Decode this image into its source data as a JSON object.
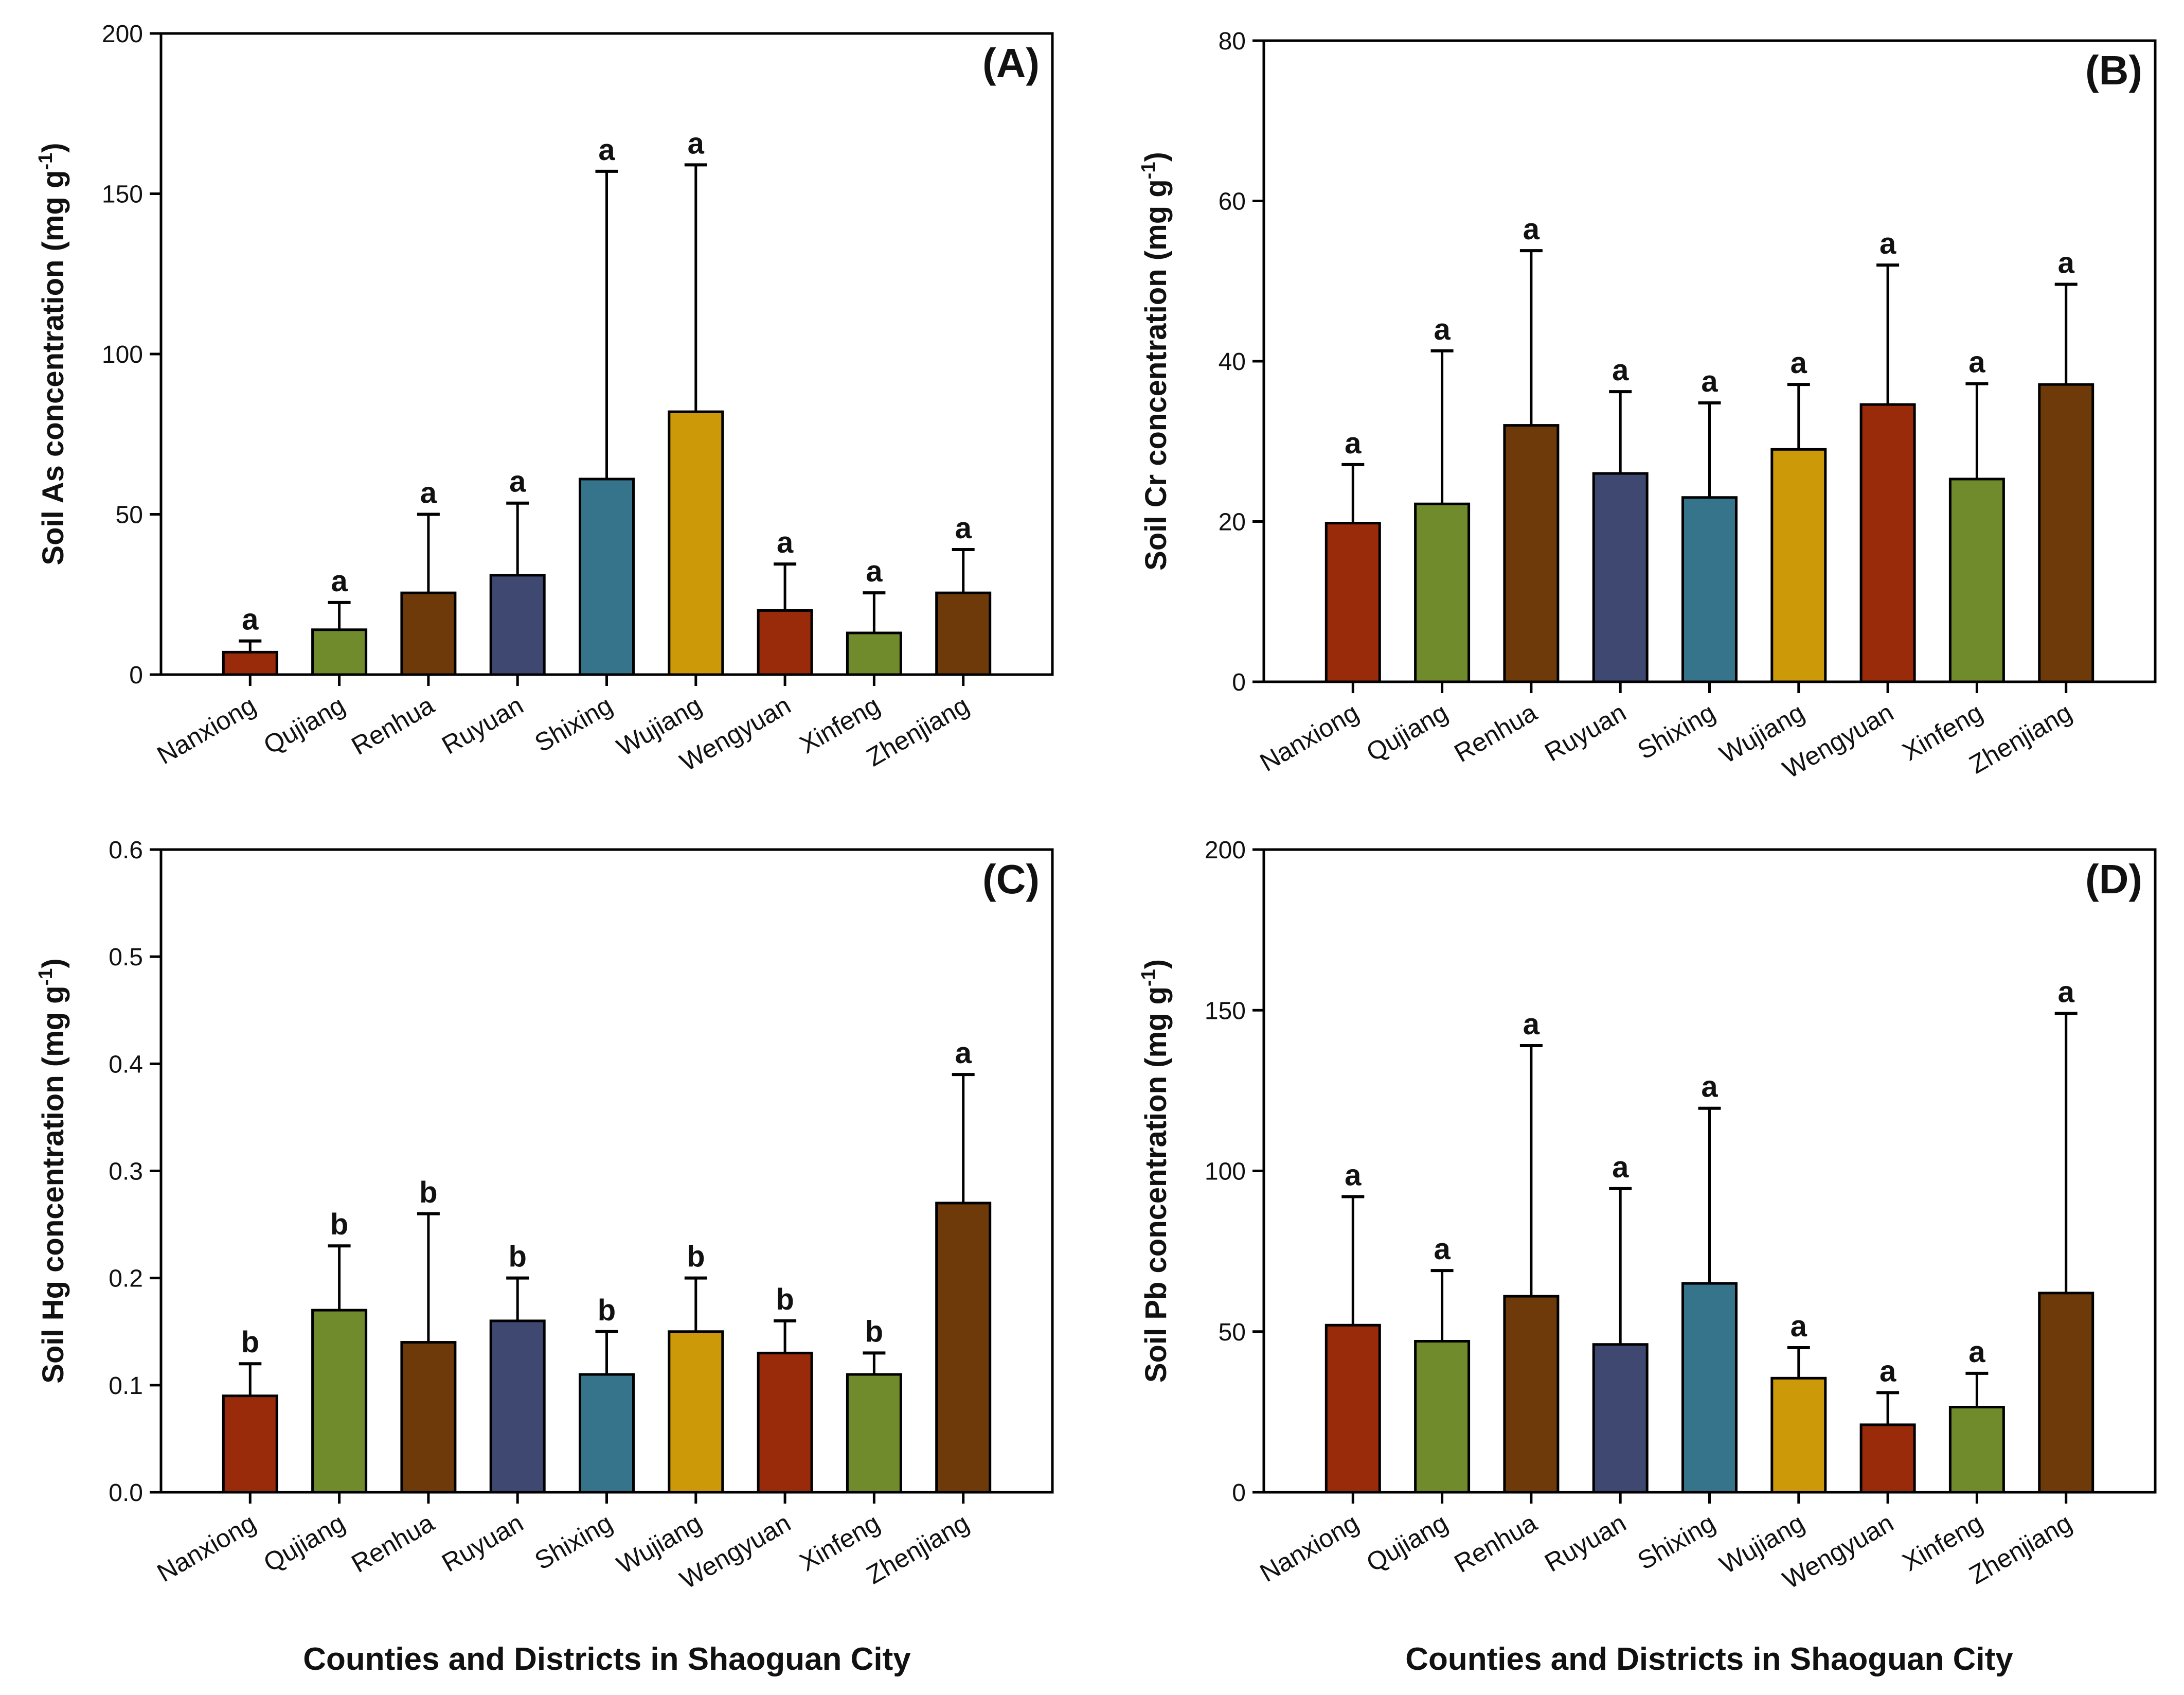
{
  "colors": [
    "#992A0A",
    "#6F8B2C",
    "#6E3A0A",
    "#3E4870",
    "#35748A",
    "#CC9908",
    "#992A0A",
    "#6F8B2C",
    "#6E3A0A"
  ],
  "x_axis_title": "Counties and Districts in Shaoguan City",
  "chart_data": [
    {
      "type": "bar",
      "panel": "(A)",
      "title": "(A)",
      "ylabel": "Soil As concentration (mg g",
      "ylabel_sup": "-1",
      "ylabel_end": ")",
      "categories": [
        "Nanxiong",
        "Qujiang",
        "Renhua",
        "Ruyuan",
        "Shixing",
        "Wujiang",
        "Wengyuan",
        "Xinfeng",
        "Zhenjiang"
      ],
      "values": [
        7,
        14,
        25.5,
        31,
        61,
        82,
        20,
        13,
        25.5
      ],
      "error_upper": [
        10.5,
        22.5,
        50,
        53.5,
        157,
        159,
        34.5,
        25.5,
        39
      ],
      "letters": [
        "a",
        "a",
        "a",
        "a",
        "a",
        "a",
        "a",
        "a",
        "a"
      ],
      "ylim": [
        0,
        200
      ],
      "yticks": [
        0,
        50,
        100,
        150,
        200
      ],
      "ytick_labels": [
        "0",
        "50",
        "100",
        "150",
        "200"
      ]
    },
    {
      "type": "bar",
      "panel": "(B)",
      "title": "(B)",
      "ylabel": "Soil Cr concentration (mg g",
      "ylabel_sup": "-1",
      "ylabel_end": ")",
      "categories": [
        "Nanxiong",
        "Qujiang",
        "Renhua",
        "Ruyuan",
        "Shixing",
        "Wujiang",
        "Wengyuan",
        "Xinfeng",
        "Zhenjiang"
      ],
      "values": [
        19.8,
        22.2,
        32,
        26,
        23,
        29,
        34.6,
        25.3,
        37.1
      ],
      "error_upper": [
        27.1,
        41.3,
        53.8,
        36.2,
        34.8,
        37.1,
        52,
        37.2,
        49.6
      ],
      "letters": [
        "a",
        "a",
        "a",
        "a",
        "a",
        "a",
        "a",
        "a",
        "a"
      ],
      "ylim": [
        0,
        80
      ],
      "yticks": [
        0,
        20,
        40,
        60,
        80
      ],
      "ytick_labels": [
        "0",
        "20",
        "40",
        "60",
        "80"
      ]
    },
    {
      "type": "bar",
      "panel": "(C)",
      "title": "(C)",
      "ylabel": "Soil Hg concentration (mg g",
      "ylabel_sup": "-1",
      "ylabel_end": ")",
      "categories": [
        "Nanxiong",
        "Qujiang",
        "Renhua",
        "Ruyuan",
        "Shixing",
        "Wujiang",
        "Wengyuan",
        "Xinfeng",
        "Zhenjiang"
      ],
      "values": [
        0.09,
        0.17,
        0.14,
        0.16,
        0.11,
        0.15,
        0.13,
        0.11,
        0.27
      ],
      "error_upper": [
        0.12,
        0.23,
        0.26,
        0.2,
        0.15,
        0.2,
        0.16,
        0.13,
        0.39
      ],
      "letters": [
        "b",
        "b",
        "b",
        "b",
        "b",
        "b",
        "b",
        "b",
        "a"
      ],
      "ylim": [
        0,
        0.6
      ],
      "yticks": [
        0,
        0.1,
        0.2,
        0.3,
        0.4,
        0.5,
        0.6
      ],
      "ytick_labels": [
        "0.0",
        "0.1",
        "0.2",
        "0.3",
        "0.4",
        "0.5",
        "0.6"
      ]
    },
    {
      "type": "bar",
      "panel": "(D)",
      "title": "(D)",
      "ylabel": "Soil Pb concentration (mg g",
      "ylabel_sup": "-1",
      "ylabel_end": ")",
      "categories": [
        "Nanxiong",
        "Qujiang",
        "Renhua",
        "Ruyuan",
        "Shixing",
        "Wujiang",
        "Wengyuan",
        "Xinfeng",
        "Zhenjiang"
      ],
      "values": [
        52,
        47,
        61,
        46,
        65,
        35.5,
        21,
        26.5,
        62
      ],
      "error_upper": [
        92,
        69,
        139,
        94.5,
        119.5,
        45,
        31,
        37,
        149
      ],
      "letters": [
        "a",
        "a",
        "a",
        "a",
        "a",
        "a",
        "a",
        "a",
        "a"
      ],
      "ylim": [
        0,
        200
      ],
      "yticks": [
        0,
        50,
        100,
        150,
        200
      ],
      "ytick_labels": [
        "0",
        "50",
        "100",
        "150",
        "200"
      ]
    }
  ]
}
